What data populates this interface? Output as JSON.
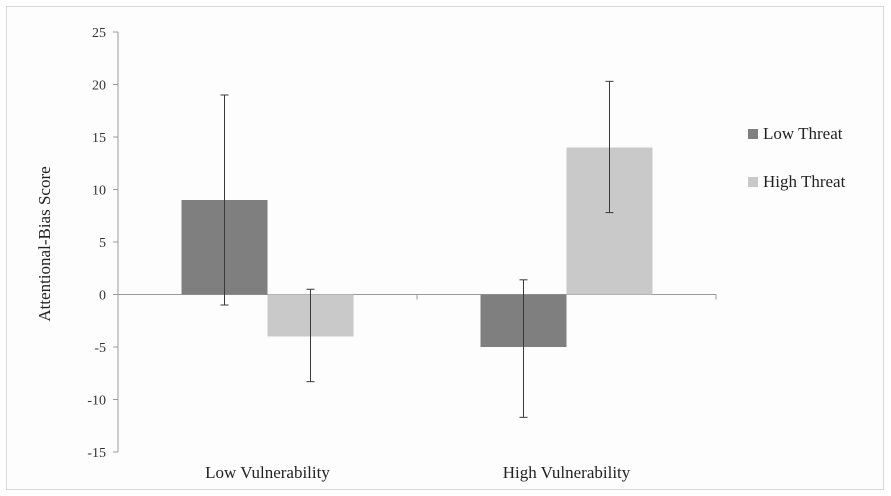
{
  "chart_data": {
    "type": "bar",
    "title": "",
    "xlabel": "",
    "ylabel": "Attentional-Bias Score",
    "ylim": [
      -15,
      25
    ],
    "yticks": [
      25,
      20,
      15,
      10,
      5,
      0,
      -5,
      -10,
      -15
    ],
    "ytick_labels": [
      "25",
      "20",
      "15",
      "10",
      "5",
      "0",
      "-5",
      "-10",
      "-15"
    ],
    "categories": [
      "Low Vulnerability",
      "High Vulnerability"
    ],
    "series": [
      {
        "name": "Low Threat",
        "color": "#7f7f7f",
        "values": [
          9,
          -5
        ],
        "error_low": [
          -1,
          -11.7
        ],
        "error_high": [
          19,
          1.4
        ]
      },
      {
        "name": "High Threat",
        "color": "#c9c9c9",
        "values": [
          -4,
          14
        ],
        "error_low": [
          -8.3,
          7.8
        ],
        "error_high": [
          0.5,
          20.3
        ]
      }
    ],
    "grid": false,
    "legend_position": "right"
  }
}
